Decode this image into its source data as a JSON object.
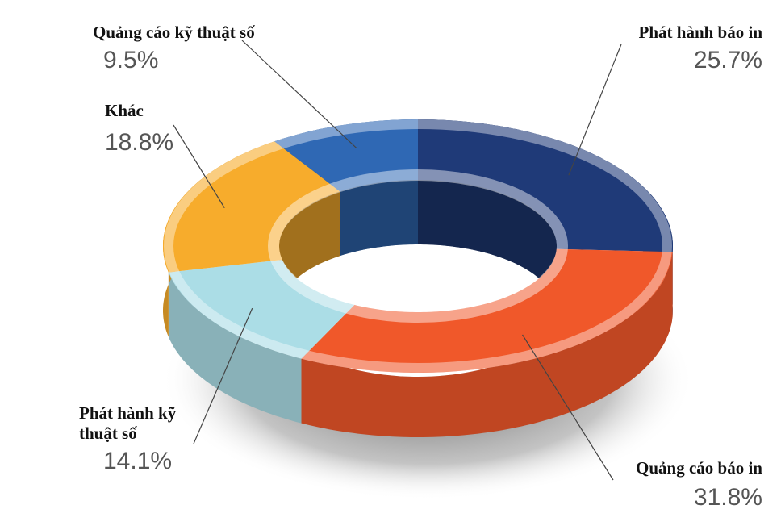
{
  "chart_data": {
    "type": "pie",
    "categories": [
      "Phát hành báo in",
      "Quảng cáo báo in",
      "Phát hành kỹ thuật số",
      "Khác",
      "Quảng cáo kỹ thuật số"
    ],
    "values": [
      25.7,
      31.8,
      14.1,
      18.8,
      9.5
    ],
    "value_labels": [
      "25.7%",
      "31.8%",
      "14.1%",
      "18.8%",
      "9.5%"
    ],
    "colors": [
      "#1f3a78",
      "#f0582a",
      "#abdde6",
      "#f7ac2c",
      "#2f68b4"
    ]
  }
}
